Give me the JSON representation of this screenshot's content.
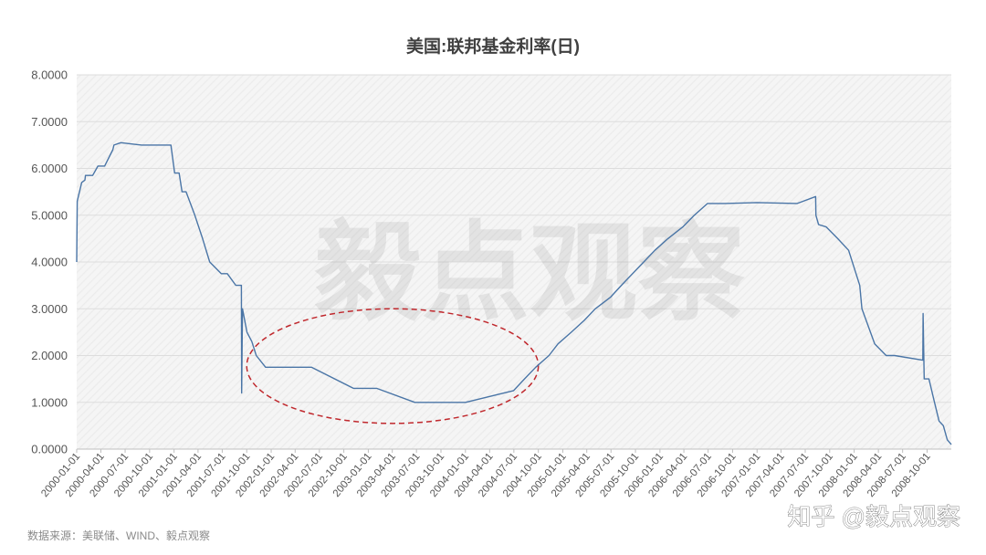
{
  "chart_data": {
    "type": "line",
    "title": "美国:联邦基金利率(日)",
    "ylim": [
      0,
      8
    ],
    "y_ticks": [
      "0.0000",
      "1.0000",
      "2.0000",
      "3.0000",
      "4.0000",
      "5.0000",
      "6.0000",
      "7.0000",
      "8.0000"
    ],
    "y_tick_values": [
      0,
      1,
      2,
      3,
      4,
      5,
      6,
      7,
      8
    ],
    "x_range": [
      "2000-01-01",
      "2008-12-31"
    ],
    "x_ticks": [
      "2000-01-01",
      "2000-04-01",
      "2000-07-01",
      "2000-10-01",
      "2001-01-01",
      "2001-04-01",
      "2001-07-01",
      "2001-10-01",
      "2002-01-01",
      "2002-04-01",
      "2002-07-01",
      "2002-10-01",
      "2003-01-01",
      "2003-04-01",
      "2003-07-01",
      "2003-10-01",
      "2004-01-01",
      "2004-04-01",
      "2004-07-01",
      "2004-10-01",
      "2005-01-01",
      "2005-04-01",
      "2005-07-01",
      "2005-10-01",
      "2006-01-01",
      "2006-04-01",
      "2006-07-01",
      "2006-10-01",
      "2007-01-01",
      "2007-04-01",
      "2007-07-01",
      "2007-10-01",
      "2008-01-01",
      "2008-04-01",
      "2008-07-01",
      "2008-10-01"
    ],
    "grid": true,
    "line_color": "#4a75a6",
    "series": [
      {
        "x": [
          "2000-01-01",
          "2000-01-03",
          "2000-01-20",
          "2000-02-01",
          "2000-02-03",
          "2000-03-01",
          "2000-03-21",
          "2000-04-15",
          "2000-05-16",
          "2000-05-20",
          "2000-06-15",
          "2000-08-01",
          "2000-09-01",
          "2000-10-01",
          "2000-11-01",
          "2000-12-15",
          "2000-12-20",
          "2001-01-03",
          "2001-01-20",
          "2001-01-31",
          "2001-02-15",
          "2001-03-20",
          "2001-04-18",
          "2001-05-15",
          "2001-06-27",
          "2001-07-20",
          "2001-08-21",
          "2001-09-11",
          "2001-09-12",
          "2001-09-15",
          "2001-10-02",
          "2001-10-20",
          "2001-11-06",
          "2001-12-11",
          "2002-02-01",
          "2002-06-01",
          "2002-11-06",
          "2003-02-01",
          "2003-06-25",
          "2003-09-01",
          "2004-01-01",
          "2004-06-30",
          "2004-08-10",
          "2004-09-21",
          "2004-11-10",
          "2004-12-14",
          "2005-02-02",
          "2005-03-22",
          "2005-05-03",
          "2005-06-30",
          "2005-08-09",
          "2005-09-20",
          "2005-11-01",
          "2005-12-13",
          "2006-01-31",
          "2006-03-28",
          "2006-05-10",
          "2006-06-29",
          "2006-09-01",
          "2007-01-01",
          "2007-06-01",
          "2007-08-09",
          "2007-08-10",
          "2007-08-20",
          "2007-09-18",
          "2007-10-31",
          "2007-12-11",
          "2008-01-22",
          "2008-01-30",
          "2008-03-18",
          "2008-04-30",
          "2008-06-01",
          "2008-09-15",
          "2008-09-16",
          "2008-09-20",
          "2008-10-08",
          "2008-10-29",
          "2008-11-15",
          "2008-12-01",
          "2008-12-16",
          "2008-12-31"
        ],
        "values": [
          4.0,
          5.3,
          5.7,
          5.75,
          5.85,
          5.85,
          6.05,
          6.05,
          6.4,
          6.5,
          6.55,
          6.52,
          6.5,
          6.5,
          6.5,
          6.5,
          6.5,
          5.9,
          5.9,
          5.5,
          5.5,
          5.0,
          4.5,
          4.0,
          3.75,
          3.75,
          3.5,
          3.5,
          1.2,
          3.0,
          2.5,
          2.3,
          2.0,
          1.75,
          1.75,
          1.75,
          1.3,
          1.3,
          1.0,
          1.0,
          1.0,
          1.25,
          1.5,
          1.75,
          2.0,
          2.25,
          2.5,
          2.75,
          3.0,
          3.25,
          3.5,
          3.75,
          4.0,
          4.25,
          4.5,
          4.75,
          5.0,
          5.25,
          5.25,
          5.27,
          5.25,
          5.4,
          5.0,
          4.8,
          4.75,
          4.5,
          4.25,
          3.5,
          3.0,
          2.25,
          2.0,
          2.0,
          1.9,
          2.9,
          1.5,
          1.5,
          1.0,
          0.6,
          0.5,
          0.2,
          0.1
        ]
      }
    ],
    "annotations": [
      {
        "type": "ellipse",
        "style": "dashed",
        "color": "#c0282d",
        "x_range": [
          "2001-10-01",
          "2004-10-01"
        ],
        "y_range": [
          0.55,
          3.0
        ]
      }
    ]
  },
  "watermark": "毅点观察",
  "footer_watermark": "知乎 @毅点观察",
  "source_text": "数据来源：美联储、WIND、毅点观察"
}
